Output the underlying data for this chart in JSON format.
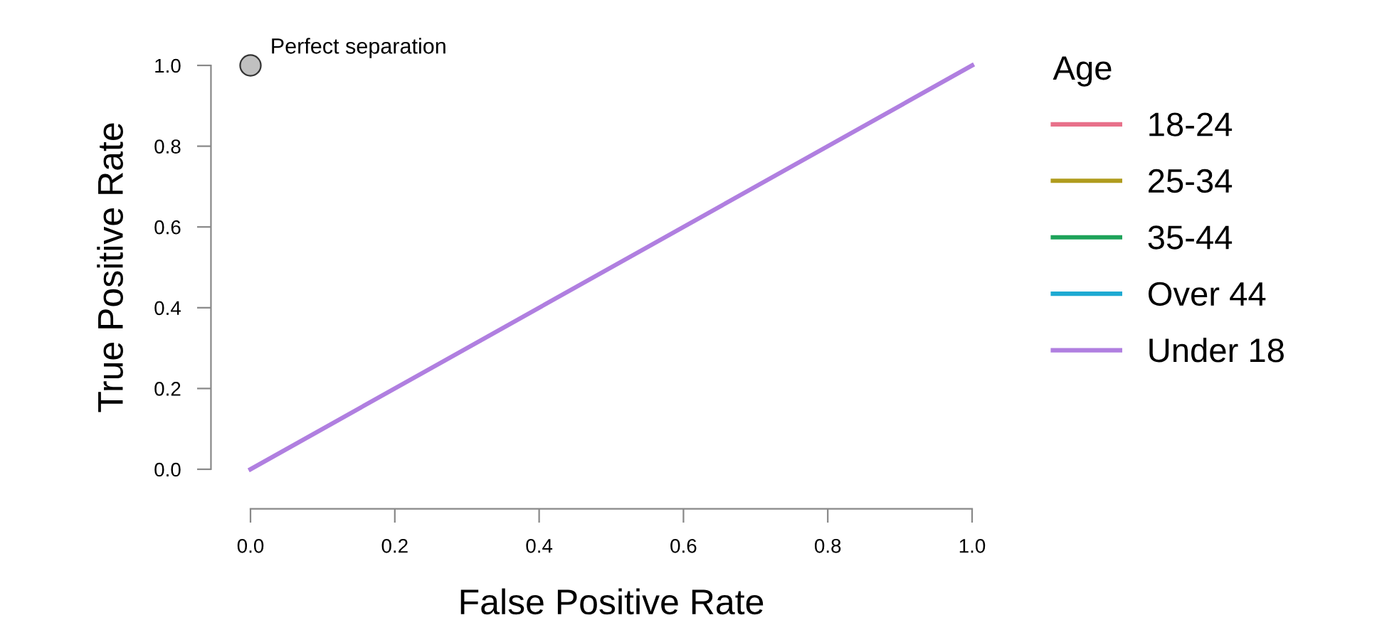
{
  "chart_data": {
    "type": "line",
    "xlabel": "False Positive Rate",
    "ylabel": "True Positive Rate",
    "legend_title": "Age",
    "x": [
      0,
      1
    ],
    "series": [
      {
        "name": "18-24",
        "color": "#e8718a",
        "values": [
          null,
          null
        ]
      },
      {
        "name": "25-34",
        "color": "#b09c1e",
        "values": [
          null,
          null
        ]
      },
      {
        "name": "35-44",
        "color": "#1ea35a",
        "values": [
          null,
          null
        ]
      },
      {
        "name": "Over 44",
        "color": "#1eaad2",
        "values": [
          null,
          null
        ]
      },
      {
        "name": "Under 18",
        "color": "#b07fe0",
        "values": [
          0,
          1
        ]
      },
      {
        "type": "scatter",
        "color": "#c0c0c0",
        "x": [
          0
        ],
        "values": [
          1
        ],
        "marker": "circle"
      }
    ],
    "annotations": [
      {
        "text": "Perfect separation",
        "x": 0,
        "y": 1
      }
    ],
    "xlim": [
      0,
      1
    ],
    "ylim": [
      0,
      1
    ],
    "xticks": [
      {
        "value": 0,
        "label": "0.0"
      },
      {
        "value": 0.2,
        "label": "0.2"
      },
      {
        "value": 0.4,
        "label": "0.4"
      },
      {
        "value": 0.6,
        "label": "0.6"
      },
      {
        "value": 0.8,
        "label": "0.8"
      },
      {
        "value": 1,
        "label": "1.0"
      }
    ],
    "yticks": [
      {
        "value": 0,
        "label": "0.0"
      },
      {
        "value": 0.2,
        "label": "0.2"
      },
      {
        "value": 0.4,
        "label": "0.4"
      },
      {
        "value": 0.6,
        "label": "0.6"
      },
      {
        "value": 0.8,
        "label": "0.8"
      },
      {
        "value": 1,
        "label": "1.0"
      }
    ],
    "grid": false,
    "legend": "right",
    "line_style": "solid"
  }
}
